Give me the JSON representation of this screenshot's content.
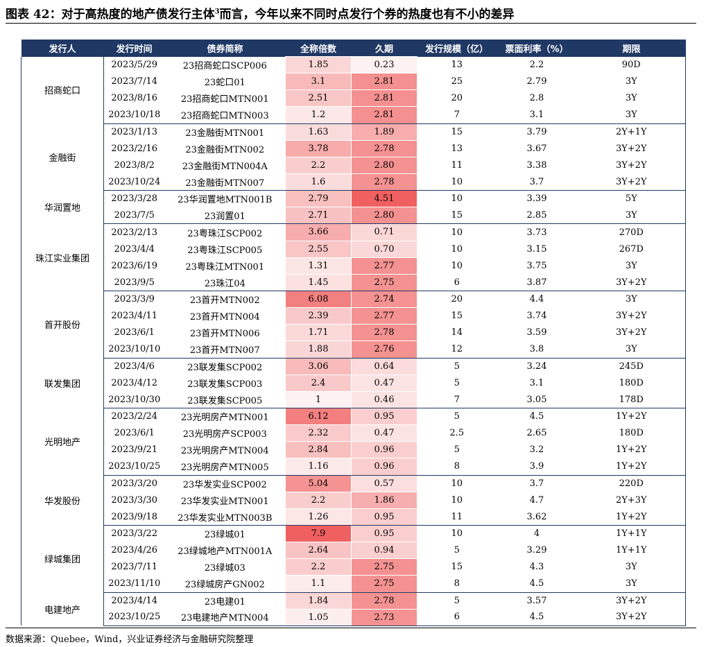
{
  "title_prefix": "图表 42：对于高热度的地产债发行主体",
  "title_sup": "3",
  "title_suffix": "而言，今年以来不同时点发行个券的热度也有不小的差异",
  "headers": [
    "发行人",
    "发行时间",
    "债券简称",
    "全称倍数",
    "久期",
    "发行规模（亿）",
    "票面利率（%）",
    "期限"
  ],
  "groups": [
    {
      "issuer": "招商蛇口",
      "rows": [
        [
          "2023/5/29",
          "23招商蛇口SCP006",
          "1.85",
          "0.23",
          "13",
          "2.2",
          "90D"
        ],
        [
          "2023/7/14",
          "23蛇口01",
          "3.1",
          "2.81",
          "25",
          "2.79",
          "3Y"
        ],
        [
          "2023/8/16",
          "23招商蛇口MTN001",
          "2.51",
          "2.81",
          "20",
          "2.8",
          "3Y"
        ],
        [
          "2023/10/18",
          "23招商蛇口MTN003",
          "1.2",
          "2.81",
          "7",
          "3.1",
          "3Y"
        ]
      ]
    },
    {
      "issuer": "金融街",
      "rows": [
        [
          "2023/1/13",
          "23金融街MTN001",
          "1.63",
          "1.89",
          "15",
          "3.79",
          "2Y+1Y"
        ],
        [
          "2023/2/16",
          "23金融街MTN002",
          "3.78",
          "2.78",
          "13",
          "3.67",
          "3Y+2Y"
        ],
        [
          "2023/8/2",
          "23金融街MTN004A",
          "2.2",
          "2.80",
          "11",
          "3.38",
          "3Y+2Y"
        ],
        [
          "2023/10/24",
          "23金融街MTN007",
          "1.6",
          "2.78",
          "10",
          "3.7",
          "3Y+2Y"
        ]
      ]
    },
    {
      "issuer": "华润置地",
      "rows": [
        [
          "2023/3/28",
          "23华润置地MTN001B",
          "2.79",
          "4.51",
          "10",
          "3.39",
          "5Y"
        ],
        [
          "2023/7/5",
          "23润置01",
          "2.71",
          "2.80",
          "15",
          "2.85",
          "3Y"
        ]
      ]
    },
    {
      "issuer": "珠江实业集团",
      "rows": [
        [
          "2023/2/13",
          "23粤珠江SCP002",
          "3.66",
          "0.71",
          "10",
          "3.73",
          "270D"
        ],
        [
          "2023/4/4",
          "23粤珠江SCP005",
          "2.55",
          "0.70",
          "10",
          "3.15",
          "267D"
        ],
        [
          "2023/6/19",
          "23粤珠江MTN001",
          "1.31",
          "2.77",
          "10",
          "3.75",
          "3Y"
        ],
        [
          "2023/9/5",
          "23珠江04",
          "1.45",
          "2.75",
          "6",
          "3.87",
          "3Y+2Y"
        ]
      ]
    },
    {
      "issuer": "首开股份",
      "rows": [
        [
          "2023/3/9",
          "23首开MTN002",
          "6.08",
          "2.74",
          "20",
          "4.4",
          "3Y"
        ],
        [
          "2023/4/11",
          "23首开MTN004",
          "2.39",
          "2.77",
          "15",
          "3.74",
          "3Y+2Y"
        ],
        [
          "2023/6/1",
          "23首开MTN006",
          "1.71",
          "2.78",
          "14",
          "3.59",
          "3Y+2Y"
        ],
        [
          "2023/10/10",
          "23首开MTN007",
          "1.88",
          "2.76",
          "12",
          "3.8",
          "3Y"
        ]
      ]
    },
    {
      "issuer": "联发集团",
      "rows": [
        [
          "2023/4/6",
          "23联发集SCP002",
          "3.06",
          "0.64",
          "5",
          "3.24",
          "245D"
        ],
        [
          "2023/4/12",
          "23联发集SCP003",
          "2.4",
          "0.47",
          "5",
          "3.1",
          "180D"
        ],
        [
          "2023/10/30",
          "23联发集SCP005",
          "1",
          "0.46",
          "7",
          "3.05",
          "178D"
        ]
      ]
    },
    {
      "issuer": "光明地产",
      "rows": [
        [
          "2023/2/24",
          "23光明房产MTN001",
          "6.12",
          "0.95",
          "5",
          "4.5",
          "1Y+2Y"
        ],
        [
          "2023/6/1",
          "23光明房产SCP003",
          "2.32",
          "0.47",
          "2.5",
          "2.65",
          "180D"
        ],
        [
          "2023/9/21",
          "23光明房产MTN004",
          "2.84",
          "0.96",
          "5",
          "3.2",
          "1Y+2Y"
        ],
        [
          "2023/10/25",
          "23光明房产MTN005",
          "1.16",
          "0.96",
          "8",
          "3.9",
          "1Y+2Y"
        ]
      ]
    },
    {
      "issuer": "华发股份",
      "rows": [
        [
          "2023/3/20",
          "23华发实业SCP002",
          "5.04",
          "0.57",
          "10",
          "3.7",
          "220D"
        ],
        [
          "2023/3/30",
          "23华发实业MTN001",
          "2.2",
          "1.86",
          "10",
          "4.7",
          "2Y+3Y"
        ],
        [
          "2023/9/18",
          "23华发实业MTN003B",
          "1.26",
          "0.95",
          "11",
          "3.62",
          "1Y+2Y"
        ]
      ]
    },
    {
      "issuer": "绿城集团",
      "rows": [
        [
          "2023/3/22",
          "23绿城01",
          "7.9",
          "0.95",
          "10",
          "4",
          "1Y+1Y"
        ],
        [
          "2023/4/26",
          "23绿城地产MTN001A",
          "2.64",
          "0.94",
          "5",
          "3.29",
          "1Y+1Y"
        ],
        [
          "2023/7/11",
          "23绿城03",
          "2.2",
          "2.75",
          "15",
          "4.3",
          "3Y"
        ],
        [
          "2023/11/10",
          "23绿城房产GN002",
          "1.1",
          "2.75",
          "8",
          "4.5",
          "3Y"
        ]
      ]
    },
    {
      "issuer": "电建地产",
      "rows": [
        [
          "2023/4/14",
          "23电建01",
          "1.84",
          "2.78",
          "5",
          "3.57",
          "3Y+2Y"
        ],
        [
          "2023/10/25",
          "23电建地产MTN004",
          "1.05",
          "2.73",
          "6",
          "4.5",
          "3Y+2Y"
        ]
      ]
    }
  ],
  "source": "数据来源：Quebee，Wind，兴业证券经济与金融研究院整理",
  "colors": {
    "header_bg": "#1f3864",
    "heat_low": "#fdf1f1",
    "heat_high": "#f06060"
  }
}
